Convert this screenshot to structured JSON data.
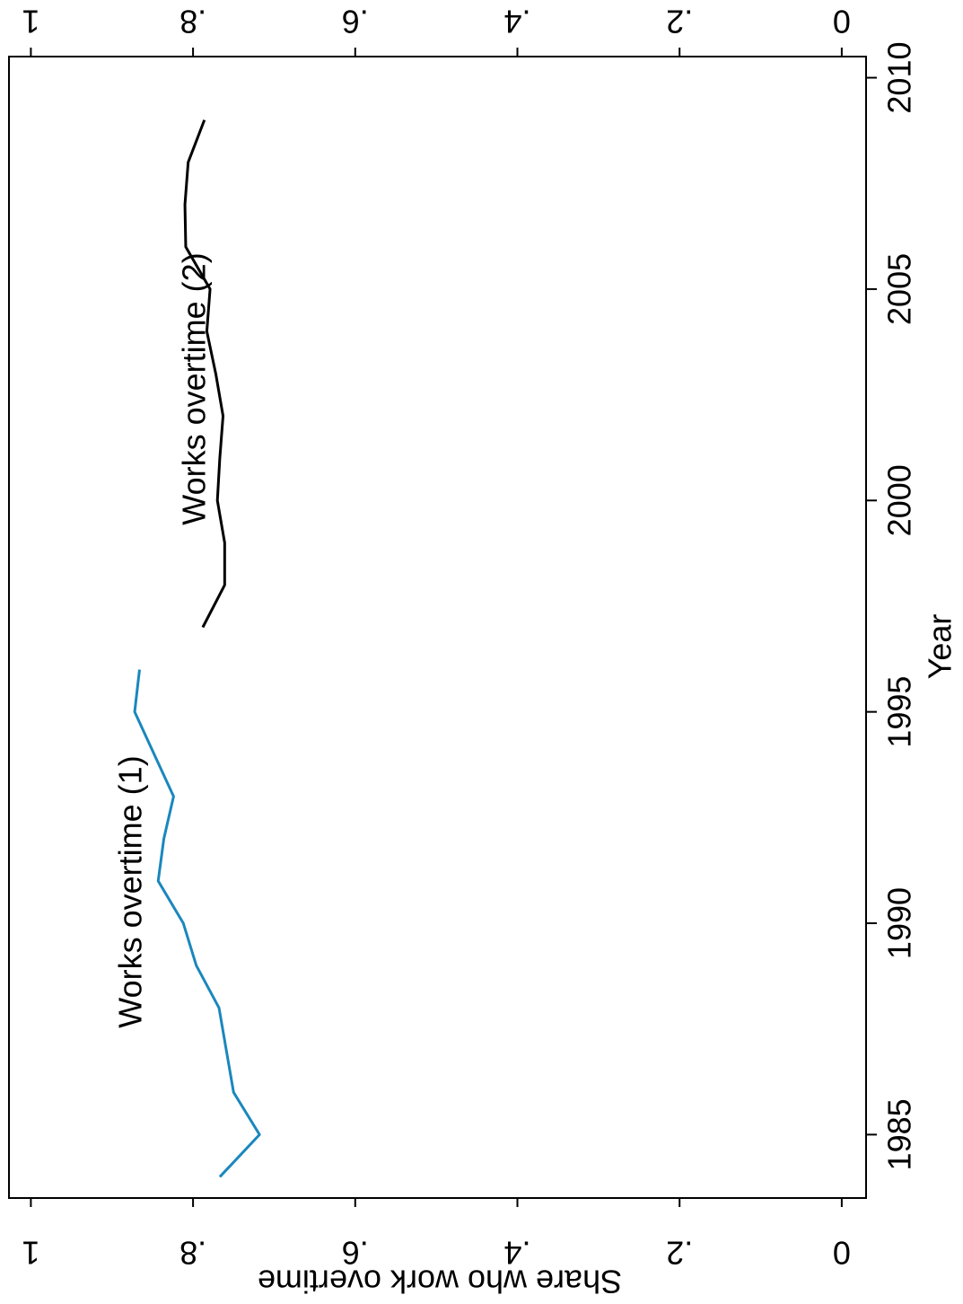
{
  "chart_data": {
    "type": "line",
    "x_label": "Year",
    "y_label": "Share who work overtime",
    "xlim": [
      1983.5,
      2010.5
    ],
    "xticks": [
      1985,
      1990,
      1995,
      2000,
      2005,
      2010
    ],
    "ylim": [
      -0.03,
      1.027
    ],
    "yticks": [
      0,
      {
        "value": 0.2,
        "label": ".2"
      },
      {
        "value": 0.4,
        "label": ".4"
      },
      {
        "value": 0.6,
        "label": ".6"
      },
      {
        "value": 0.8,
        "label": ".8"
      },
      1
    ],
    "series": [
      {
        "name": "Works overtime (1)",
        "color": "#1a87bd",
        "x": [
          1984,
          1985,
          1986,
          1987,
          1988,
          1989,
          1990,
          1991,
          1992,
          1993,
          1994,
          1995,
          1996
        ],
        "values": [
          0.767,
          0.718,
          0.75,
          0.759,
          0.768,
          0.796,
          0.812,
          0.843,
          0.836,
          0.824,
          0.848,
          0.872,
          0.866
        ]
      },
      {
        "name": "Works overtime (2)",
        "color": "#000000",
        "x": [
          1997,
          1998,
          1999,
          2000,
          2001,
          2002,
          2003,
          2004,
          2005,
          2006,
          2007,
          2008,
          2009
        ],
        "values": [
          0.788,
          0.761,
          0.761,
          0.77,
          0.767,
          0.763,
          0.772,
          0.783,
          0.779,
          0.809,
          0.81,
          0.806,
          0.786
        ]
      }
    ]
  }
}
